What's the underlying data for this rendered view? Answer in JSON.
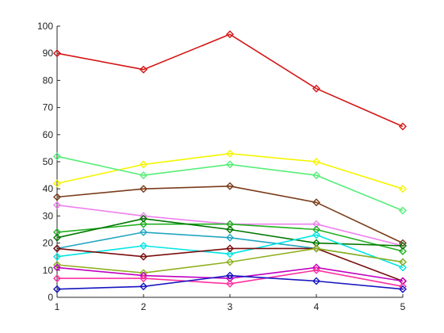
{
  "chart_data": {
    "type": "line",
    "marker": "diamond",
    "x": [
      1,
      2,
      3,
      4,
      5
    ],
    "xlim": [
      1,
      5
    ],
    "ylim": [
      0,
      100
    ],
    "x_ticks": [
      "1",
      "2",
      "3",
      "4",
      "5"
    ],
    "y_ticks": [
      "0",
      "10",
      "20",
      "30",
      "40",
      "50",
      "60",
      "70",
      "80",
      "90",
      "100"
    ],
    "grid": false,
    "legend": "none",
    "series": [
      {
        "color": "#d41515",
        "values": [
          90,
          84,
          97,
          77,
          63
        ]
      },
      {
        "color": "#f5f500",
        "values": [
          42,
          49,
          53,
          50,
          40
        ]
      },
      {
        "color": "#55ee77",
        "values": [
          52,
          45,
          49,
          45,
          32
        ]
      },
      {
        "color": "#7a3b1a",
        "values": [
          37,
          40,
          41,
          35,
          20
        ]
      },
      {
        "color": "#ee80ee",
        "values": [
          34,
          30,
          27,
          27,
          19
        ]
      },
      {
        "color": "#20b020",
        "values": [
          24,
          27,
          27,
          25,
          17
        ]
      },
      {
        "color": "#007700",
        "values": [
          22,
          29,
          25,
          20,
          19
        ]
      },
      {
        "color": "#22a6c0",
        "values": [
          18,
          24,
          22,
          18,
          13
        ]
      },
      {
        "color": "#00e5e5",
        "values": [
          15,
          19,
          16,
          23,
          11
        ]
      },
      {
        "color": "#7a0e0e",
        "values": [
          18,
          15,
          18,
          18,
          6
        ]
      },
      {
        "color": "#90b020",
        "values": [
          12,
          9,
          13,
          18,
          13
        ]
      },
      {
        "color": "#c000c0",
        "values": [
          11,
          8,
          7,
          11,
          6
        ]
      },
      {
        "color": "#ff30a0",
        "values": [
          7,
          7,
          5,
          10,
          4
        ]
      },
      {
        "color": "#1515c0",
        "values": [
          3,
          4,
          8,
          6,
          3
        ]
      }
    ]
  }
}
